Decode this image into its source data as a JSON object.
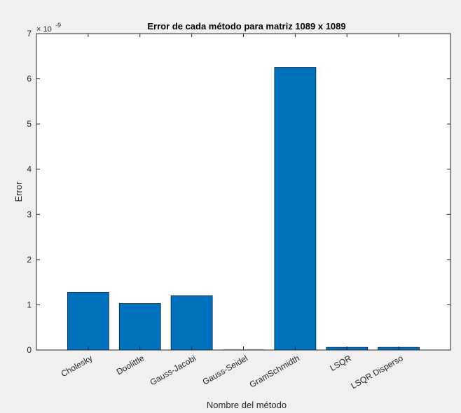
{
  "chart_data": {
    "type": "bar",
    "title": "Error de cada método para matriz 1089 x 1089",
    "xlabel": "Nombre del método",
    "ylabel": "Error",
    "y_exponent_base": "× 10",
    "y_exponent": "-9",
    "categories": [
      "Cholesky",
      "Doolittle",
      "Gauss-Jacobi",
      "Gauss-Seidel",
      "GramSchmidth",
      "LSQR",
      "LSQR Disperso"
    ],
    "values": [
      1.28e-09,
      1.03e-09,
      1.2e-09,
      5e-12,
      6.25e-09,
      6e-11,
      6e-11
    ],
    "ylim": [
      0,
      7e-09
    ],
    "yticks": [
      0,
      1e-09,
      2e-09,
      3e-09,
      4e-09,
      5e-09,
      6e-09,
      7e-09
    ],
    "ytick_labels": [
      "0",
      "1",
      "2",
      "3",
      "4",
      "5",
      "6",
      "7"
    ],
    "grid": false,
    "legend": "none",
    "bar_color": "#0072BD",
    "axes_background": "#ffffff",
    "figure_background": "#f0f0f0"
  }
}
